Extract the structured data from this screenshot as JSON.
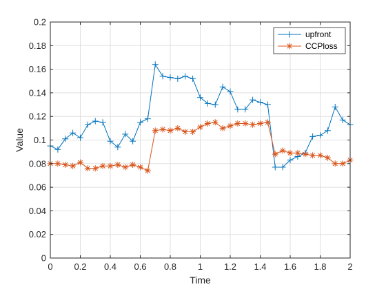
{
  "chart_data": {
    "type": "line",
    "xlabel": "Time",
    "ylabel": "Value",
    "xlim": [
      0,
      2
    ],
    "ylim": [
      0,
      0.2
    ],
    "x_ticks": [
      "0",
      "0.2",
      "0.4",
      "0.6",
      "0.8",
      "1",
      "1.2",
      "1.4",
      "1.6",
      "1.8",
      "2"
    ],
    "y_ticks": [
      "0",
      "0.02",
      "0.04",
      "0.06",
      "0.08",
      "0.1",
      "0.12",
      "0.14",
      "0.16",
      "0.18",
      "0.2"
    ],
    "grid": true,
    "legend_position": "top-right",
    "x": [
      0,
      0.05,
      0.1,
      0.15,
      0.2,
      0.25,
      0.3,
      0.35,
      0.4,
      0.45,
      0.5,
      0.55,
      0.6,
      0.65,
      0.7,
      0.75,
      0.8,
      0.85,
      0.9,
      0.95,
      1.0,
      1.05,
      1.1,
      1.15,
      1.2,
      1.25,
      1.3,
      1.35,
      1.4,
      1.45,
      1.5,
      1.55,
      1.6,
      1.65,
      1.7,
      1.75,
      1.8,
      1.85,
      1.9,
      1.95,
      2.0
    ],
    "series": [
      {
        "name": "upfront",
        "color": "#0072BD",
        "marker": "plus",
        "values": [
          0.095,
          0.092,
          0.101,
          0.106,
          0.102,
          0.113,
          0.116,
          0.115,
          0.099,
          0.094,
          0.105,
          0.099,
          0.115,
          0.118,
          0.164,
          0.154,
          0.153,
          0.152,
          0.154,
          0.152,
          0.136,
          0.131,
          0.13,
          0.145,
          0.141,
          0.126,
          0.126,
          0.134,
          0.132,
          0.13,
          0.077,
          0.077,
          0.083,
          0.086,
          0.089,
          0.103,
          0.104,
          0.108,
          0.128,
          0.117,
          0.113
        ]
      },
      {
        "name": "CCPloss",
        "color": "#D95319",
        "marker": "asterisk",
        "values": [
          0.08,
          0.08,
          0.079,
          0.078,
          0.081,
          0.076,
          0.076,
          0.078,
          0.078,
          0.079,
          0.077,
          0.079,
          0.077,
          0.074,
          0.108,
          0.109,
          0.108,
          0.11,
          0.107,
          0.107,
          0.111,
          0.114,
          0.115,
          0.11,
          0.112,
          0.114,
          0.114,
          0.113,
          0.114,
          0.115,
          0.088,
          0.091,
          0.089,
          0.089,
          0.088,
          0.087,
          0.087,
          0.085,
          0.08,
          0.08,
          0.083
        ]
      }
    ]
  }
}
